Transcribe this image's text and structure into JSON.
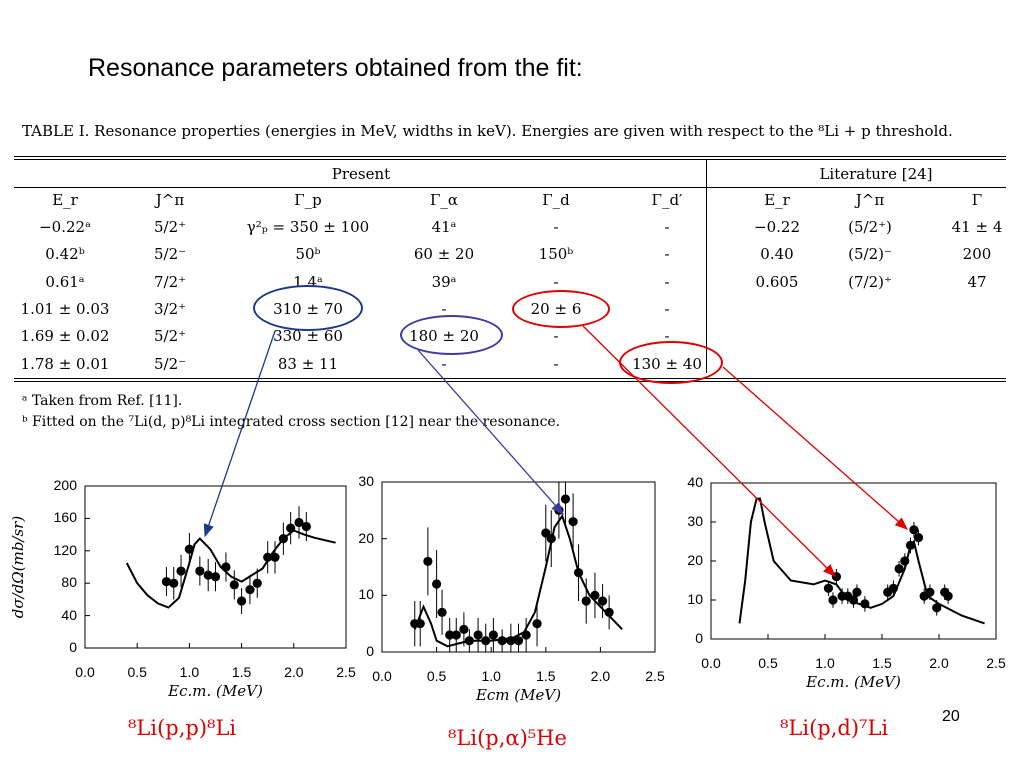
{
  "slide": {
    "title": "Resonance parameters obtained from the fit:",
    "page_number": "20"
  },
  "table": {
    "caption": "TABLE I. Resonance properties (energies in MeV, widths in keV). Energies are given with respect to the ⁸Li + p threshold.",
    "group_present": "Present",
    "group_literature": "Literature [24]",
    "headers": [
      "E_r",
      "J^π",
      "Γ_p",
      "Γ_α",
      "Γ_d",
      "Γ_d′",
      "E_r",
      "J^π",
      "Γ"
    ],
    "rows": [
      [
        "−0.22ᵃ",
        "5/2⁺",
        "γ²ₚ = 350 ± 100",
        "41ᵃ",
        "-",
        "-",
        "−0.22",
        "(5/2⁺)",
        "41 ± 4"
      ],
      [
        "0.42ᵇ",
        "5/2⁻",
        "50ᵇ",
        "60 ± 20",
        "150ᵇ",
        "-",
        "0.40",
        "(5/2)⁻",
        "200"
      ],
      [
        "0.61ᵃ",
        "7/2⁺",
        "1.4ᵃ",
        "39ᵃ",
        "-",
        "-",
        "0.605",
        "(7/2)⁺",
        "47"
      ],
      [
        "1.01 ± 0.03",
        "3/2⁺",
        "310 ± 70",
        "-",
        "20 ± 6",
        "-",
        "",
        "",
        ""
      ],
      [
        "1.69 ± 0.02",
        "5/2⁺",
        "330 ± 60",
        "180 ± 20",
        "-",
        "-",
        "",
        "",
        ""
      ],
      [
        "1.78 ± 0.01",
        "5/2⁻",
        "83 ± 11",
        "-",
        "-",
        "130 ± 40",
        "",
        "",
        ""
      ]
    ],
    "footnote_a": "ᵃ Taken from Ref. [11].",
    "footnote_b": "ᵇ Fitted on the ⁷Li(d, p)⁸Li integrated cross section [12] near the resonance."
  },
  "highlights": {
    "blue": "#1a3a8a",
    "purple": "#3b3ba0",
    "red": "#e00000"
  },
  "chart_data": [
    {
      "type": "scatter",
      "reaction": "⁸Li(p,p)⁸Li",
      "ylabel": "dσ/dΩ(mb/sr)",
      "xlabel": "Ec.m. (MeV)",
      "xlim": [
        0.0,
        2.5
      ],
      "ylim": [
        0,
        200
      ],
      "xticks": [
        "0.0",
        "0.5",
        "1.0",
        "1.5",
        "2.0",
        "2.5"
      ],
      "yticks": [
        "0",
        "40",
        "80",
        "120",
        "160",
        "200"
      ],
      "points": {
        "x": [
          0.78,
          0.85,
          0.92,
          1.0,
          1.1,
          1.18,
          1.25,
          1.35,
          1.43,
          1.5,
          1.58,
          1.65,
          1.75,
          1.82,
          1.9,
          1.97,
          2.05,
          2.12
        ],
        "y": [
          82,
          80,
          95,
          122,
          95,
          90,
          88,
          100,
          78,
          58,
          72,
          80,
          112,
          112,
          135,
          148,
          155,
          150
        ]
      },
      "errors": [
        18,
        20,
        20,
        20,
        18,
        20,
        18,
        18,
        18,
        16,
        18,
        18,
        20,
        20,
        20,
        20,
        20,
        18
      ],
      "fit": {
        "x": [
          0.4,
          0.5,
          0.6,
          0.7,
          0.8,
          0.9,
          1.0,
          1.05,
          1.1,
          1.2,
          1.3,
          1.4,
          1.5,
          1.6,
          1.7,
          1.8,
          1.9,
          2.0,
          2.1,
          2.2,
          2.4
        ],
        "y": [
          105,
          80,
          65,
          55,
          50,
          62,
          105,
          128,
          135,
          122,
          100,
          88,
          82,
          90,
          98,
          118,
          135,
          145,
          140,
          136,
          130
        ]
      }
    },
    {
      "type": "scatter",
      "reaction": "⁸Li(p,α)⁵He",
      "xlabel": "Ecm (MeV)",
      "xlim": [
        0.0,
        2.5
      ],
      "ylim": [
        0,
        30
      ],
      "xticks": [
        "0.0",
        "0.5",
        "1.0",
        "1.5",
        "2.0",
        "2.5"
      ],
      "yticks": [
        "0",
        "10",
        "20",
        "30"
      ],
      "points": {
        "x": [
          0.3,
          0.35,
          0.42,
          0.5,
          0.55,
          0.62,
          0.68,
          0.75,
          0.8,
          0.88,
          0.95,
          1.02,
          1.1,
          1.18,
          1.25,
          1.32,
          1.42,
          1.5,
          1.55,
          1.62,
          1.68,
          1.75,
          1.8,
          1.87,
          1.95,
          2.02,
          2.08
        ],
        "y": [
          5,
          5,
          16,
          12,
          7,
          3,
          3,
          4,
          2,
          3,
          2,
          3,
          2,
          2,
          2,
          3,
          5,
          21,
          20,
          25,
          27,
          23,
          14,
          9,
          10,
          9,
          7
        ]
      },
      "errors": [
        4,
        4,
        6,
        6,
        4,
        3,
        3,
        3,
        2,
        3,
        3,
        3,
        2,
        3,
        3,
        3,
        4,
        5,
        5,
        5,
        5,
        5,
        5,
        4,
        4,
        3,
        3
      ],
      "fit": {
        "x": [
          0.3,
          0.38,
          0.45,
          0.5,
          0.6,
          0.7,
          0.8,
          1.0,
          1.2,
          1.3,
          1.4,
          1.5,
          1.58,
          1.65,
          1.72,
          1.8,
          1.9,
          2.0,
          2.2
        ],
        "y": [
          4,
          8,
          5,
          2,
          1,
          1.5,
          2,
          2,
          2.5,
          3.5,
          7,
          15,
          22,
          24,
          20,
          14,
          10,
          8,
          4
        ]
      }
    },
    {
      "type": "scatter",
      "reaction": "⁸Li(p,d)⁷Li",
      "xlabel": "Ec.m. (MeV)",
      "xlim": [
        0.0,
        2.5
      ],
      "ylim": [
        0,
        40
      ],
      "xticks": [
        "0.0",
        "0.5",
        "1.0",
        "1.5",
        "2.0",
        "2.5"
      ],
      "yticks": [
        "0",
        "10",
        "20",
        "30",
        "40"
      ],
      "points": {
        "x": [
          1.03,
          1.07,
          1.1,
          1.15,
          1.2,
          1.25,
          1.28,
          1.35,
          1.55,
          1.6,
          1.65,
          1.7,
          1.75,
          1.78,
          1.82,
          1.87,
          1.92,
          1.98,
          2.05,
          2.08
        ],
        "y": [
          13,
          10,
          16,
          11,
          11,
          10,
          12,
          9,
          12,
          13,
          18,
          20,
          24,
          28,
          26,
          11,
          12,
          8,
          12,
          11
        ]
      },
      "errors": [
        2,
        2,
        2,
        2,
        2,
        2,
        2,
        2,
        2,
        2,
        2,
        2,
        2,
        2,
        2,
        2,
        2,
        2,
        2,
        2
      ],
      "fit": {
        "x": [
          0.25,
          0.3,
          0.35,
          0.4,
          0.43,
          0.47,
          0.55,
          0.7,
          0.9,
          1.0,
          1.1,
          1.2,
          1.3,
          1.4,
          1.5,
          1.6,
          1.7,
          1.75,
          1.78,
          1.82,
          1.9,
          2.0,
          2.2,
          2.4
        ],
        "y": [
          4,
          15,
          30,
          36,
          36,
          30,
          20,
          15,
          14,
          15,
          14,
          10,
          9,
          8,
          9,
          11,
          18,
          24,
          25,
          20,
          11,
          9,
          6,
          4
        ]
      }
    }
  ]
}
